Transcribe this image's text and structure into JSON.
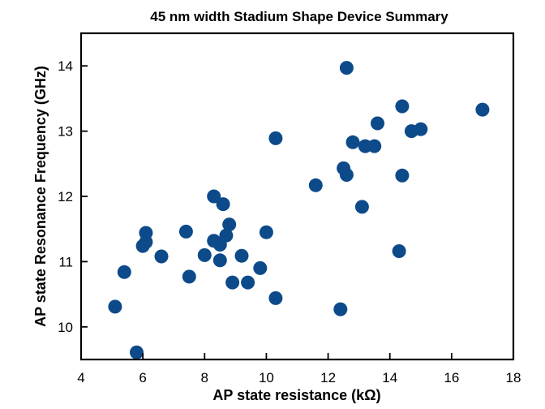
{
  "chart_data": {
    "type": "scatter",
    "title": "45 nm width Stadium Shape Device Summary",
    "xlabel": "AP state resistance (kΩ)",
    "ylabel": "AP state Resonance Frequency (GHz)",
    "xlim": [
      4,
      18
    ],
    "ylim": [
      9.5,
      14.5
    ],
    "xticks": [
      4,
      6,
      8,
      10,
      12,
      14,
      16,
      18
    ],
    "yticks": [
      10,
      11,
      12,
      13,
      14
    ],
    "grid": false,
    "marker_color": "#0d4a8a",
    "points": [
      {
        "x": 5.1,
        "y": 10.31
      },
      {
        "x": 5.4,
        "y": 10.84
      },
      {
        "x": 5.8,
        "y": 9.61
      },
      {
        "x": 6.0,
        "y": 11.24
      },
      {
        "x": 6.1,
        "y": 11.3
      },
      {
        "x": 6.1,
        "y": 11.44
      },
      {
        "x": 6.6,
        "y": 11.08
      },
      {
        "x": 7.4,
        "y": 11.46
      },
      {
        "x": 7.5,
        "y": 10.77
      },
      {
        "x": 8.0,
        "y": 11.1
      },
      {
        "x": 8.3,
        "y": 11.32
      },
      {
        "x": 8.3,
        "y": 12.0
      },
      {
        "x": 8.5,
        "y": 11.26
      },
      {
        "x": 8.5,
        "y": 11.02
      },
      {
        "x": 8.6,
        "y": 11.88
      },
      {
        "x": 8.7,
        "y": 11.4
      },
      {
        "x": 8.8,
        "y": 11.57
      },
      {
        "x": 8.9,
        "y": 10.68
      },
      {
        "x": 9.2,
        "y": 11.09
      },
      {
        "x": 9.4,
        "y": 10.68
      },
      {
        "x": 9.8,
        "y": 10.9
      },
      {
        "x": 10.0,
        "y": 11.45
      },
      {
        "x": 10.3,
        "y": 12.89
      },
      {
        "x": 10.3,
        "y": 10.44
      },
      {
        "x": 11.6,
        "y": 12.17
      },
      {
        "x": 12.4,
        "y": 10.27
      },
      {
        "x": 12.5,
        "y": 12.43
      },
      {
        "x": 12.6,
        "y": 12.33
      },
      {
        "x": 12.6,
        "y": 13.97
      },
      {
        "x": 12.8,
        "y": 12.83
      },
      {
        "x": 13.1,
        "y": 11.84
      },
      {
        "x": 13.2,
        "y": 12.77
      },
      {
        "x": 13.5,
        "y": 12.77
      },
      {
        "x": 13.6,
        "y": 13.12
      },
      {
        "x": 14.3,
        "y": 11.16
      },
      {
        "x": 14.4,
        "y": 13.38
      },
      {
        "x": 14.4,
        "y": 12.32
      },
      {
        "x": 14.7,
        "y": 13.0
      },
      {
        "x": 15.0,
        "y": 13.03
      },
      {
        "x": 17.0,
        "y": 13.33
      }
    ]
  }
}
